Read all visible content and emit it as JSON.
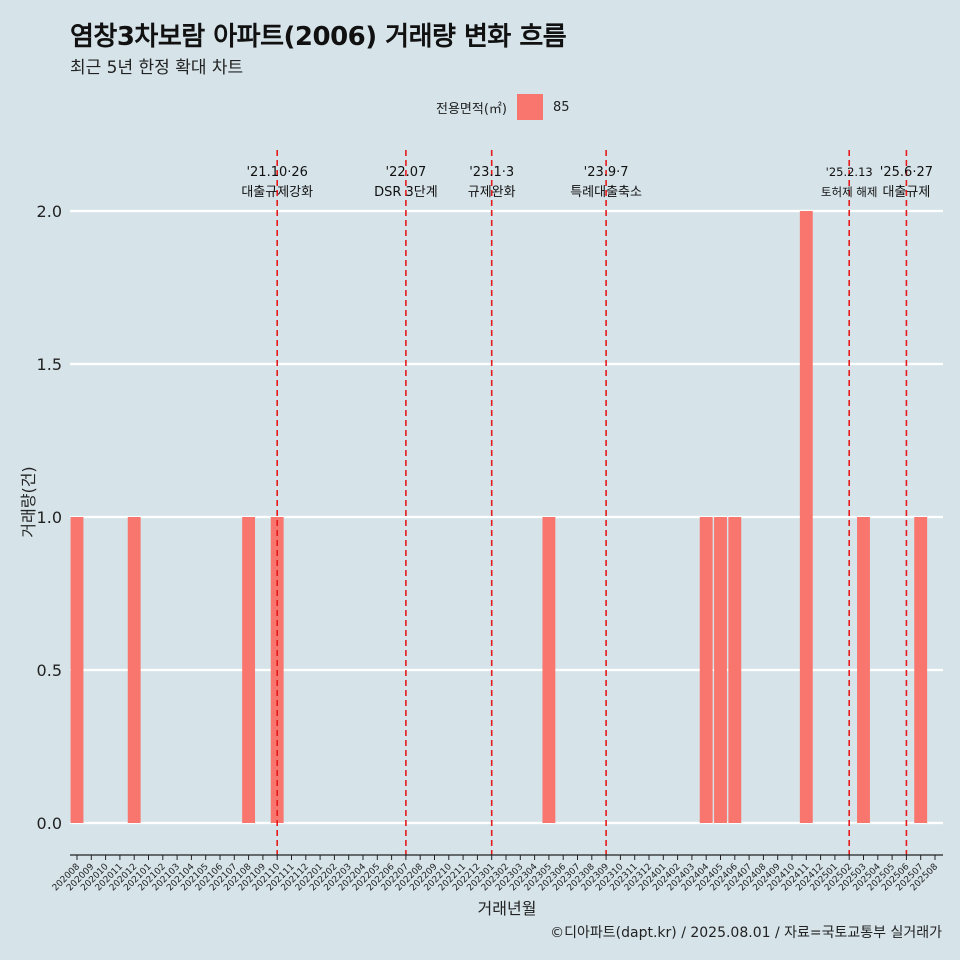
{
  "title": "염창3차보람 아파트(2006) 거래량 변화 흐름",
  "subtitle": "최근 5년 한정 확대 차트",
  "legend": {
    "title": "전용면적(㎡)",
    "label": "85"
  },
  "caption": "©디아파트(dapt.kr) / 2025.08.01 / 자료=국토교통부 실거래가",
  "colors": {
    "bar": "#f8766d",
    "event_line": "#e41a1c",
    "background": "#d6e4ea",
    "grid": "#ffffff"
  },
  "chart_data": {
    "type": "bar",
    "xlabel": "거래년월",
    "ylabel": "거래량(건)",
    "ylim": [
      0,
      2
    ],
    "yticks": [
      "0.0",
      "0.5",
      "1.0",
      "1.5",
      "2.0"
    ],
    "categories": [
      "202008",
      "202009",
      "202010",
      "202011",
      "202012",
      "202101",
      "202102",
      "202103",
      "202104",
      "202105",
      "202106",
      "202107",
      "202108",
      "202109",
      "202110",
      "202111",
      "202112",
      "202201",
      "202202",
      "202203",
      "202204",
      "202205",
      "202206",
      "202207",
      "202208",
      "202209",
      "202210",
      "202211",
      "202212",
      "202301",
      "202302",
      "202303",
      "202304",
      "202305",
      "202306",
      "202307",
      "202308",
      "202309",
      "202310",
      "202311",
      "202312",
      "202401",
      "202402",
      "202403",
      "202404",
      "202405",
      "202406",
      "202407",
      "202408",
      "202409",
      "202410",
      "202411",
      "202412",
      "202501",
      "202502",
      "202503",
      "202504",
      "202505",
      "202506",
      "202507",
      "202508"
    ],
    "series": [
      {
        "name": "85",
        "values": [
          1,
          0,
          0,
          0,
          1,
          0,
          0,
          0,
          0,
          0,
          0,
          0,
          1,
          0,
          1,
          0,
          0,
          0,
          0,
          0,
          0,
          0,
          0,
          0,
          0,
          0,
          0,
          0,
          0,
          0,
          0,
          0,
          0,
          1,
          0,
          0,
          0,
          0,
          0,
          0,
          0,
          0,
          0,
          0,
          1,
          1,
          1,
          0,
          0,
          0,
          0,
          2,
          0,
          0,
          0,
          1,
          0,
          0,
          0,
          1,
          0
        ]
      }
    ],
    "events": [
      {
        "date": "'21.10·26",
        "label": "대출규제강화",
        "x": "202110"
      },
      {
        "date": "'22.07",
        "label": "DSR 3단계",
        "x": "202207"
      },
      {
        "date": "'23.1·3",
        "label": "규제완화",
        "x": "202301"
      },
      {
        "date": "'23.9·7",
        "label": "특례대출축소",
        "x": "202309"
      },
      {
        "date": "'25.2.13",
        "label": "토허제 해제",
        "x": "202502",
        "small": true
      },
      {
        "date": "'25.6·27",
        "label": "대출규제",
        "x": "202506"
      }
    ]
  }
}
